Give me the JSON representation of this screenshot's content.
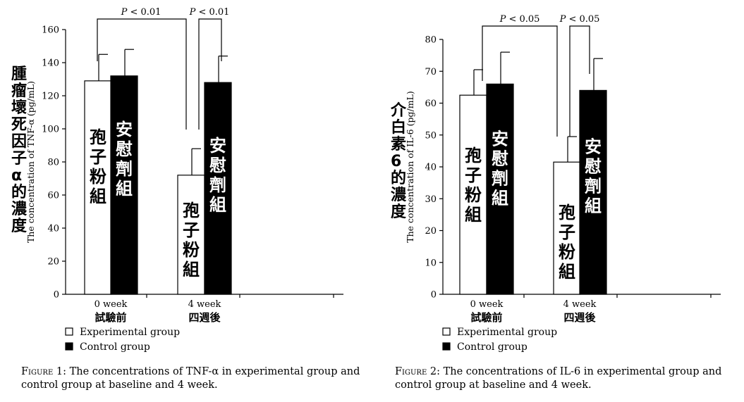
{
  "legend": [
    {
      "name": "Experimental group",
      "color": "#ffffff"
    },
    {
      "name": "Control group",
      "color": "#000000"
    }
  ],
  "chart_data": [
    {
      "type": "bar",
      "title": "",
      "ylabel": "The concentration of TNF-α (pg/mL)",
      "ylabel_cn": [
        "腫",
        "瘤",
        "壞",
        "死",
        "因",
        "子",
        "α",
        "的",
        "濃",
        "度"
      ],
      "ylim": [
        0,
        160
      ],
      "yticks": [
        "0",
        "20",
        "40",
        "60",
        "80",
        "100",
        "120",
        "140",
        "160"
      ],
      "categories": [
        {
          "en": "0 week",
          "cn": "試驗前"
        },
        {
          "en": "4 week",
          "cn": "四週後"
        }
      ],
      "series": [
        {
          "name": "Experimental group",
          "values": [
            129,
            72
          ],
          "errors": [
            16,
            16
          ],
          "bar_label": [
            "孢",
            "子",
            "粉",
            "組"
          ]
        },
        {
          "name": "Control group",
          "values": [
            132,
            128
          ],
          "errors": [
            16,
            16
          ],
          "bar_label": [
            "安",
            "慰",
            "劑",
            "組"
          ]
        }
      ],
      "significance": [
        {
          "label": "P < 0.01",
          "between": "0 week experimental vs 4 week experimental"
        },
        {
          "label": "P < 0.01",
          "between": "4 week experimental vs 4 week control"
        }
      ],
      "caption_label": "Figure 1:",
      "caption": "The concentrations of TNF-α in experimental group and control group at baseline and 4 week."
    },
    {
      "type": "bar",
      "title": "",
      "ylabel": "The concentration of IL-6 (pg/mL)",
      "ylabel_cn": [
        "介",
        "白",
        "素",
        "6",
        "的",
        "濃",
        "度"
      ],
      "ylim": [
        0,
        80
      ],
      "yticks": [
        "0",
        "10",
        "20",
        "30",
        "40",
        "50",
        "60",
        "70",
        "80"
      ],
      "categories": [
        {
          "en": "0 week",
          "cn": "試驗前"
        },
        {
          "en": "4 week",
          "cn": "四週後"
        }
      ],
      "series": [
        {
          "name": "Experimental group",
          "values": [
            62.5,
            41.5
          ],
          "errors": [
            8,
            8
          ],
          "bar_label": [
            "孢",
            "子",
            "粉",
            "組"
          ]
        },
        {
          "name": "Control group",
          "values": [
            66,
            64
          ],
          "errors": [
            10,
            10
          ],
          "bar_label": [
            "安",
            "慰",
            "劑",
            "組"
          ]
        }
      ],
      "significance": [
        {
          "label": "P < 0.05",
          "between": "0 week experimental vs 4 week experimental"
        },
        {
          "label": "P < 0.05",
          "between": "4 week experimental vs 4 week control"
        }
      ],
      "caption_label": "Figure 2:",
      "caption": "The concentrations of IL-6 in experimental group and control group at baseline and 4 week."
    }
  ]
}
